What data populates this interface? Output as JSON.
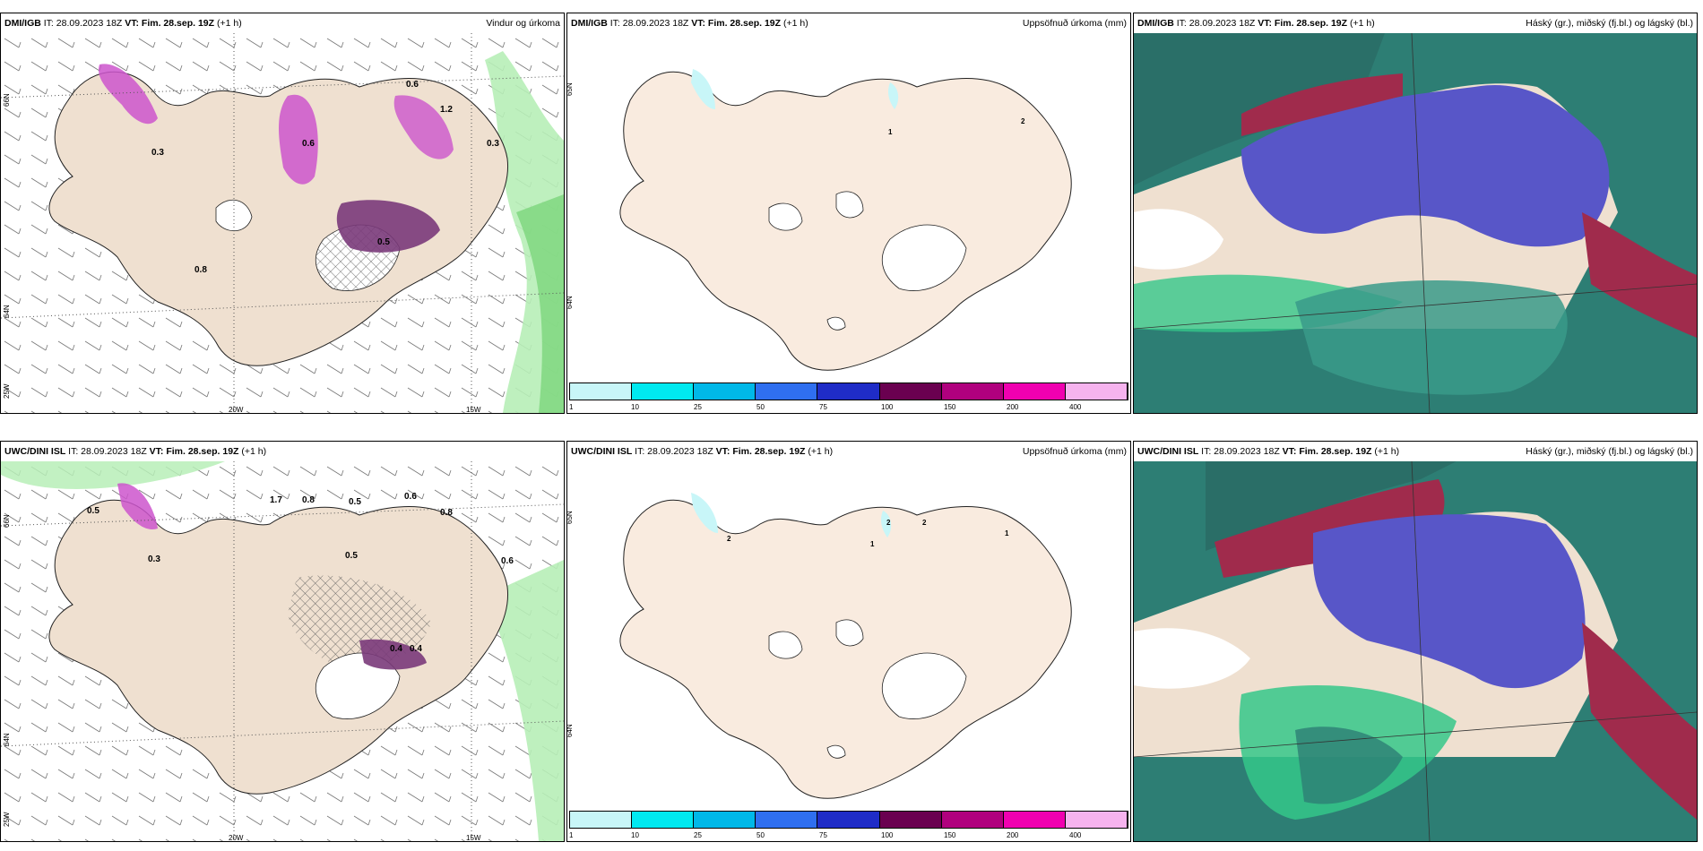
{
  "colors": {
    "land": "#efe0d0",
    "land_light": "#f9ebdf",
    "sea_wind": "#ffffff",
    "precip_light": "#b7eeb7",
    "precip_mid": "#7cd67c",
    "precip_heavy": "#cc55cc",
    "precip_dark": "#6a2d6a",
    "cloud_high": "#2a6e67",
    "cloud_mid": "#5856c8",
    "cloud_low": "#a02b4c",
    "cloud_green": "#35c78a",
    "cloud_white": "#ffffff"
  },
  "colorbar": {
    "colors": [
      "#c8f6f8",
      "#00e9f0",
      "#00b8e8",
      "#2f6ff0",
      "#1f2cc7",
      "#6a0050",
      "#b0007e",
      "#f000b0",
      "#f6b3ee"
    ],
    "ticks": [
      "1",
      "10",
      "25",
      "50",
      "75",
      "100",
      "150",
      "200",
      "400"
    ]
  },
  "panels": [
    {
      "model": "DMI/IGB",
      "it": "IT: 28.09.2023 18Z",
      "vt_label": "VT: Fim. 28.sep. 19Z",
      "lead": "(+1 h)",
      "right_title": "Vindur og úrkoma",
      "type": "wind",
      "lon_labels": [
        "20W",
        "15W"
      ],
      "lat_labels": [
        "66N",
        "64N",
        "25W"
      ],
      "values": [
        "0.6",
        "1.2",
        "0.3",
        "0.6",
        "0.8",
        "0.5",
        "0.3"
      ]
    },
    {
      "model": "DMI/IGB",
      "it": "IT: 28.09.2023 18Z",
      "vt_label": "VT: Fim. 28.sep. 19Z",
      "lead": "(+1 h)",
      "right_title": "Uppsöfnuð úrkoma (mm)",
      "type": "accum",
      "lat_labels": [
        "65N",
        "64N"
      ],
      "values": [
        "1",
        "2"
      ]
    },
    {
      "model": "DMI/IGB",
      "it": "IT: 28.09.2023 18Z",
      "vt_label": "VT: Fim. 28.sep. 19Z",
      "lead": "(+1 h)",
      "right_title": "Háský (gr.), miðský (fj.bl.) og lágský (bl.)",
      "type": "cloud"
    },
    {
      "model": "UWC/DINI ISL",
      "it": "IT: 28.09.2023 18Z",
      "vt_label": "VT: Fim. 28.sep. 19Z",
      "lead": "(+1 h)",
      "right_title": "",
      "type": "wind",
      "lon_labels": [
        "20W",
        "15W"
      ],
      "lat_labels": [
        "66N",
        "64N",
        "25W"
      ],
      "values": [
        "0.5",
        "0.3",
        "1.7",
        "0.8",
        "0.5",
        "0.6",
        "0.8",
        "0.5",
        "0.4",
        "0.4",
        "0.6"
      ]
    },
    {
      "model": "UWC/DINI ISL",
      "it": "IT: 28.09.2023 18Z",
      "vt_label": "VT: Fim. 28.sep. 19Z",
      "lead": "(+1 h)",
      "right_title": "Uppsöfnuð úrkoma (mm)",
      "type": "accum",
      "lat_labels": [
        "65N",
        "64N"
      ],
      "values": [
        "2",
        "1",
        "2",
        "2",
        "1"
      ]
    },
    {
      "model": "UWC/DINI ISL",
      "it": "IT: 28.09.2023 18Z",
      "vt_label": "VT: Fim. 28.sep. 19Z",
      "lead": "(+1 h)",
      "right_title": "Háský (gr.), miðský (fj.bl.) og lágský (bl.)",
      "type": "cloud"
    }
  ]
}
